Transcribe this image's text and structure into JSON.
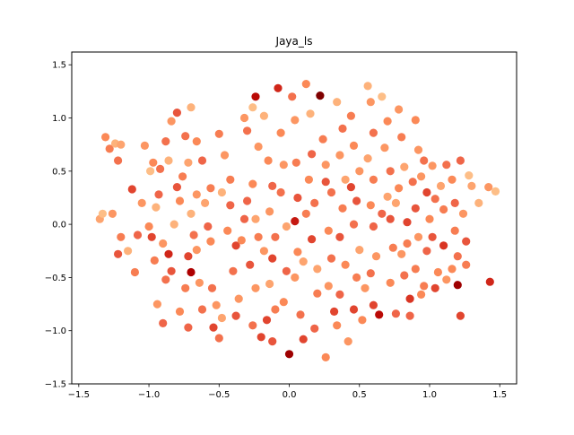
{
  "chart_data": {
    "type": "scatter",
    "title": "Jaya_ls",
    "xlabel": "",
    "ylabel": "",
    "xlim": [
      -1.55,
      1.62
    ],
    "ylim": [
      -1.5,
      1.62
    ],
    "xticks": [
      -1.5,
      -1.0,
      -0.5,
      0.0,
      0.5,
      1.0,
      1.5
    ],
    "xtick_labels": [
      "−1.5",
      "−1.0",
      "−0.5",
      "0.0",
      "0.5",
      "1.0",
      "1.5"
    ],
    "yticks": [
      -1.5,
      -1.0,
      -0.5,
      0.0,
      0.5,
      1.0,
      1.5
    ],
    "ytick_labels": [
      "−1.5",
      "−1.0",
      "−0.5",
      "0.0",
      "0.5",
      "1.0",
      "1.5"
    ],
    "grid": false,
    "colormap": "OrRd",
    "colormap_stops": [
      "#fdd49e",
      "#fdbb84",
      "#fc8d59",
      "#ef6548",
      "#d7301f",
      "#b30000",
      "#7f0000"
    ],
    "points": [
      [
        -1.31,
        0.82,
        0.35
      ],
      [
        -1.28,
        0.71,
        0.4
      ],
      [
        -1.24,
        0.76,
        0.2
      ],
      [
        -1.22,
        0.6,
        0.45
      ],
      [
        -1.35,
        0.05,
        0.25
      ],
      [
        -1.33,
        0.1,
        0.15
      ],
      [
        -1.26,
        0.1,
        0.3
      ],
      [
        -1.2,
        -0.12,
        0.4
      ],
      [
        -1.22,
        -0.28,
        0.55
      ],
      [
        -1.15,
        -0.25,
        0.2
      ],
      [
        -1.12,
        0.33,
        0.6
      ],
      [
        -1.03,
        0.74,
        0.3
      ],
      [
        -0.99,
        0.5,
        0.15
      ],
      [
        -0.97,
        0.58,
        0.35
      ],
      [
        -0.92,
        0.52,
        0.45
      ],
      [
        -0.95,
        0.16,
        0.2
      ],
      [
        -0.93,
        0.28,
        0.5
      ],
      [
        -1.0,
        -0.02,
        0.35
      ],
      [
        -0.98,
        -0.12,
        0.6
      ],
      [
        -0.96,
        -0.34,
        0.4
      ],
      [
        -0.9,
        -0.18,
        0.3
      ],
      [
        -0.86,
        -0.28,
        0.7
      ],
      [
        -0.84,
        -0.44,
        0.55
      ],
      [
        -0.88,
        -0.52,
        0.45
      ],
      [
        -0.94,
        -0.75,
        0.3
      ],
      [
        -0.9,
        -0.93,
        0.5
      ],
      [
        -0.82,
        0.0,
        0.2
      ],
      [
        -0.78,
        0.22,
        0.35
      ],
      [
        -0.76,
        0.45,
        0.4
      ],
      [
        -0.72,
        0.58,
        0.25
      ],
      [
        -0.74,
        0.83,
        0.45
      ],
      [
        -0.84,
        0.97,
        0.3
      ],
      [
        -0.8,
        1.05,
        0.55
      ],
      [
        -0.7,
        1.1,
        0.2
      ],
      [
        -0.66,
        0.78,
        0.35
      ],
      [
        -0.62,
        0.6,
        0.5
      ],
      [
        -0.66,
        0.28,
        0.3
      ],
      [
        -0.7,
        0.1,
        0.2
      ],
      [
        -0.68,
        -0.1,
        0.45
      ],
      [
        -0.72,
        -0.3,
        0.6
      ],
      [
        -0.7,
        -0.45,
        0.85
      ],
      [
        -0.74,
        -0.6,
        0.4
      ],
      [
        -0.78,
        -0.82,
        0.35
      ],
      [
        -0.72,
        -0.97,
        0.5
      ],
      [
        -0.66,
        -0.24,
        0.3
      ],
      [
        -0.6,
        0.2,
        0.25
      ],
      [
        -0.56,
        0.34,
        0.4
      ],
      [
        -0.58,
        -0.02,
        0.5
      ],
      [
        -0.56,
        -0.16,
        0.35
      ],
      [
        -0.55,
        -0.6,
        0.45
      ],
      [
        -0.52,
        -0.76,
        0.3
      ],
      [
        -0.54,
        -0.97,
        0.6
      ],
      [
        -0.5,
        -1.07,
        0.45
      ],
      [
        -0.48,
        -0.88,
        0.25
      ],
      [
        -0.46,
        0.65,
        0.3
      ],
      [
        -0.42,
        0.42,
        0.4
      ],
      [
        -0.42,
        0.18,
        0.5
      ],
      [
        -0.44,
        -0.06,
        0.35
      ],
      [
        -0.38,
        -0.2,
        0.6
      ],
      [
        -0.4,
        -0.44,
        0.45
      ],
      [
        -0.36,
        -0.7,
        0.3
      ],
      [
        -0.38,
        -0.86,
        0.55
      ],
      [
        -0.32,
        1.0,
        0.3
      ],
      [
        -0.3,
        0.88,
        0.45
      ],
      [
        -0.26,
        1.1,
        0.15
      ],
      [
        -0.24,
        1.2,
        0.8
      ],
      [
        -0.22,
        0.73,
        0.3
      ],
      [
        -0.26,
        0.38,
        0.35
      ],
      [
        -0.3,
        0.22,
        0.5
      ],
      [
        -0.24,
        0.05,
        0.25
      ],
      [
        -0.22,
        -0.12,
        0.4
      ],
      [
        -0.28,
        -0.38,
        0.55
      ],
      [
        -0.24,
        -0.6,
        0.3
      ],
      [
        -0.26,
        -0.95,
        0.45
      ],
      [
        -0.2,
        -1.06,
        0.6
      ],
      [
        -0.18,
        1.02,
        0.2
      ],
      [
        -0.15,
        0.6,
        0.35
      ],
      [
        -0.12,
        0.36,
        0.5
      ],
      [
        -0.14,
        0.12,
        0.3
      ],
      [
        -0.1,
        -0.12,
        0.45
      ],
      [
        -0.12,
        -0.32,
        0.6
      ],
      [
        -0.14,
        -0.56,
        0.25
      ],
      [
        -0.1,
        -0.8,
        0.4
      ],
      [
        -0.12,
        -1.1,
        0.55
      ],
      [
        -0.08,
        1.28,
        0.7
      ],
      [
        -0.06,
        0.86,
        0.35
      ],
      [
        -0.04,
        0.56,
        0.3
      ],
      [
        -0.06,
        0.3,
        0.45
      ],
      [
        -0.02,
        -0.02,
        0.25
      ],
      [
        -0.02,
        -0.44,
        0.5
      ],
      [
        -0.04,
        -0.73,
        0.35
      ],
      [
        0.0,
        -1.22,
        0.9
      ],
      [
        0.02,
        1.2,
        0.45
      ],
      [
        0.04,
        0.98,
        0.3
      ],
      [
        0.05,
        0.58,
        0.4
      ],
      [
        0.06,
        0.25,
        0.55
      ],
      [
        0.04,
        0.03,
        0.75
      ],
      [
        0.06,
        -0.26,
        0.35
      ],
      [
        0.04,
        -0.5,
        0.3
      ],
      [
        0.08,
        -0.85,
        0.45
      ],
      [
        0.1,
        -1.08,
        0.6
      ],
      [
        0.12,
        1.32,
        0.35
      ],
      [
        0.15,
        1.04,
        0.2
      ],
      [
        0.16,
        0.66,
        0.5
      ],
      [
        0.14,
        0.42,
        0.35
      ],
      [
        0.18,
        0.2,
        0.45
      ],
      [
        0.16,
        -0.14,
        0.6
      ],
      [
        0.2,
        -0.42,
        0.25
      ],
      [
        0.2,
        -0.65,
        0.4
      ],
      [
        0.18,
        -0.98,
        0.5
      ],
      [
        0.22,
        1.21,
        1.0
      ],
      [
        0.24,
        0.8,
        0.4
      ],
      [
        0.26,
        0.56,
        0.3
      ],
      [
        0.26,
        0.4,
        0.55
      ],
      [
        0.28,
        -0.06,
        0.35
      ],
      [
        0.3,
        -0.32,
        0.45
      ],
      [
        0.28,
        -0.58,
        0.3
      ],
      [
        0.32,
        -0.82,
        0.6
      ],
      [
        0.26,
        -1.25,
        0.35
      ],
      [
        0.34,
        1.15,
        0.2
      ],
      [
        0.38,
        0.9,
        0.45
      ],
      [
        0.36,
        0.65,
        0.3
      ],
      [
        0.4,
        0.42,
        0.25
      ],
      [
        0.38,
        0.15,
        0.4
      ],
      [
        0.36,
        -0.12,
        0.55
      ],
      [
        0.4,
        -0.38,
        0.35
      ],
      [
        0.36,
        -0.66,
        0.5
      ],
      [
        0.42,
        -1.1,
        0.3
      ],
      [
        0.44,
        1.02,
        0.4
      ],
      [
        0.46,
        0.74,
        0.35
      ],
      [
        0.5,
        0.5,
        0.3
      ],
      [
        0.48,
        0.22,
        0.55
      ],
      [
        0.46,
        0.0,
        0.45
      ],
      [
        0.5,
        -0.24,
        0.25
      ],
      [
        0.48,
        -0.5,
        0.4
      ],
      [
        0.46,
        -0.8,
        0.6
      ],
      [
        0.52,
        -0.9,
        0.35
      ],
      [
        0.56,
        1.3,
        0.2
      ],
      [
        0.58,
        1.15,
        0.3
      ],
      [
        0.6,
        0.86,
        0.45
      ],
      [
        0.56,
        0.62,
        0.25
      ],
      [
        0.6,
        0.42,
        0.4
      ],
      [
        0.58,
        0.18,
        0.35
      ],
      [
        0.6,
        -0.02,
        0.5
      ],
      [
        0.62,
        -0.3,
        0.3
      ],
      [
        0.58,
        -0.46,
        0.45
      ],
      [
        0.6,
        -0.76,
        0.6
      ],
      [
        0.64,
        -0.85,
        0.8
      ],
      [
        0.66,
        1.2,
        0.15
      ],
      [
        0.7,
        0.97,
        0.35
      ],
      [
        0.68,
        0.72,
        0.3
      ],
      [
        0.72,
        0.5,
        0.45
      ],
      [
        0.7,
        0.26,
        0.25
      ],
      [
        0.72,
        0.05,
        0.55
      ],
      [
        0.74,
        -0.22,
        0.4
      ],
      [
        0.72,
        -0.55,
        0.35
      ],
      [
        0.76,
        -0.84,
        0.5
      ],
      [
        0.78,
        1.08,
        0.3
      ],
      [
        0.8,
        0.82,
        0.4
      ],
      [
        0.82,
        0.54,
        0.25
      ],
      [
        0.78,
        0.34,
        0.35
      ],
      [
        0.84,
        0.02,
        0.6
      ],
      [
        0.8,
        -0.28,
        0.3
      ],
      [
        0.82,
        -0.48,
        0.45
      ],
      [
        0.86,
        -0.7,
        0.65
      ],
      [
        0.86,
        -0.86,
        0.5
      ],
      [
        0.9,
        0.98,
        0.35
      ],
      [
        0.92,
        0.7,
        0.3
      ],
      [
        0.88,
        0.4,
        0.45
      ],
      [
        0.9,
        0.15,
        0.55
      ],
      [
        0.92,
        -0.12,
        0.3
      ],
      [
        0.9,
        -0.42,
        0.4
      ],
      [
        0.94,
        -0.66,
        0.35
      ],
      [
        0.96,
        0.6,
        0.45
      ],
      [
        0.98,
        0.3,
        0.6
      ],
      [
        1.0,
        0.05,
        0.35
      ],
      [
        0.98,
        -0.25,
        0.5
      ],
      [
        0.96,
        -0.58,
        0.4
      ],
      [
        1.02,
        0.55,
        0.3
      ],
      [
        1.04,
        0.24,
        0.45
      ],
      [
        1.02,
        -0.12,
        0.55
      ],
      [
        1.06,
        -0.45,
        0.35
      ],
      [
        1.04,
        -0.6,
        0.6
      ],
      [
        1.08,
        0.36,
        0.25
      ],
      [
        1.1,
        0.14,
        0.4
      ],
      [
        1.1,
        -0.2,
        0.65
      ],
      [
        1.12,
        -0.52,
        0.3
      ],
      [
        1.16,
        0.42,
        0.35
      ],
      [
        1.18,
        0.2,
        0.5
      ],
      [
        1.18,
        -0.06,
        0.4
      ],
      [
        1.2,
        -0.3,
        0.45
      ],
      [
        1.22,
        -0.86,
        0.6
      ],
      [
        1.2,
        -0.57,
        0.9
      ],
      [
        1.24,
        0.1,
        0.3
      ],
      [
        1.26,
        -0.16,
        0.55
      ],
      [
        1.28,
        0.46,
        0.15
      ],
      [
        1.3,
        0.36,
        0.25
      ],
      [
        1.26,
        -0.38,
        0.4
      ],
      [
        1.35,
        0.2,
        0.2
      ],
      [
        1.42,
        0.35,
        0.3
      ],
      [
        1.47,
        0.31,
        0.15
      ],
      [
        1.43,
        -0.54,
        0.7
      ],
      [
        1.22,
        0.6,
        0.5
      ],
      [
        1.16,
        -0.42,
        0.35
      ],
      [
        -1.2,
        0.75,
        0.25
      ],
      [
        -1.05,
        0.2,
        0.3
      ],
      [
        -1.08,
        -0.1,
        0.5
      ],
      [
        -0.88,
        0.78,
        0.45
      ],
      [
        -0.86,
        0.6,
        0.2
      ],
      [
        -0.8,
        0.35,
        0.55
      ],
      [
        -0.64,
        -0.55,
        0.3
      ],
      [
        -0.62,
        -0.8,
        0.45
      ],
      [
        -0.5,
        0.85,
        0.4
      ],
      [
        -0.48,
        0.3,
        0.2
      ],
      [
        -0.34,
        -0.15,
        0.35
      ],
      [
        -0.32,
        0.05,
        0.5
      ],
      [
        -0.18,
        -0.25,
        0.3
      ],
      [
        -0.16,
        -0.9,
        0.6
      ],
      [
        0.1,
        -0.35,
        0.25
      ],
      [
        0.12,
        0.1,
        0.4
      ],
      [
        0.3,
        0.3,
        0.45
      ],
      [
        0.34,
        -0.95,
        0.35
      ],
      [
        0.44,
        0.35,
        0.6
      ],
      [
        0.54,
        -0.6,
        0.3
      ],
      [
        0.66,
        0.1,
        0.5
      ],
      [
        0.76,
        0.2,
        0.25
      ],
      [
        0.84,
        -0.18,
        0.4
      ],
      [
        0.94,
        0.45,
        0.3
      ],
      [
        1.12,
        0.56,
        0.45
      ],
      [
        -1.1,
        -0.45,
        0.4
      ]
    ]
  }
}
